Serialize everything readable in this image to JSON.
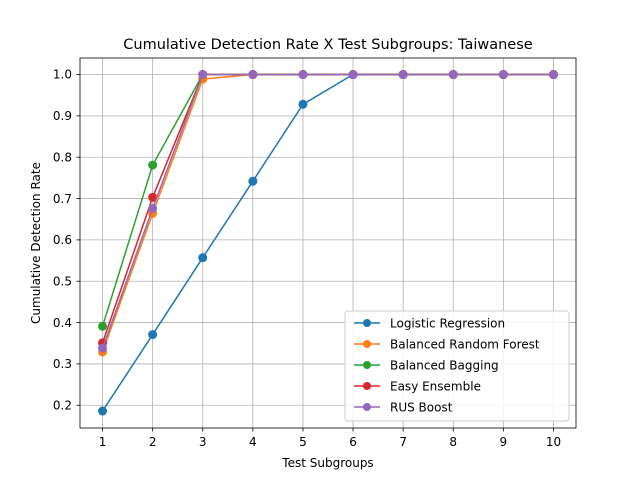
{
  "chart_data": {
    "type": "line",
    "title": "Cumulative Detection Rate X Test Subgroups: Taiwanese",
    "xlabel": "Test Subgroups",
    "ylabel": "Cumulative Detection Rate",
    "x": [
      1,
      2,
      3,
      4,
      5,
      6,
      7,
      8,
      9,
      10
    ],
    "xlim": [
      0.55,
      10.45
    ],
    "ylim": [
      0.145,
      1.04
    ],
    "xticks": [
      1,
      2,
      3,
      4,
      5,
      6,
      7,
      8,
      9,
      10
    ],
    "yticks": [
      0.2,
      0.3,
      0.4,
      0.5,
      0.6,
      0.7,
      0.8,
      0.9,
      1.0
    ],
    "ytick_labels": [
      "0.2",
      "0.3",
      "0.4",
      "0.5",
      "0.6",
      "0.7",
      "0.8",
      "0.9",
      "1.0"
    ],
    "grid": true,
    "legend_position": "lower-right",
    "marker": "circle",
    "series": [
      {
        "name": "Logistic Regression",
        "color": "#1f77b4",
        "values": [
          0.186,
          0.371,
          0.557,
          0.742,
          0.928,
          1.0,
          1.0,
          1.0,
          1.0,
          1.0
        ]
      },
      {
        "name": "Balanced Random Forest",
        "color": "#ff7f0e",
        "values": [
          0.329,
          0.664,
          0.989,
          1.0,
          1.0,
          1.0,
          1.0,
          1.0,
          1.0,
          1.0
        ]
      },
      {
        "name": "Balanced Bagging",
        "color": "#2ca02c",
        "values": [
          0.391,
          0.781,
          1.0,
          1.0,
          1.0,
          1.0,
          1.0,
          1.0,
          1.0,
          1.0
        ]
      },
      {
        "name": "Easy Ensemble",
        "color": "#d62728",
        "values": [
          0.351,
          0.703,
          1.0,
          1.0,
          1.0,
          1.0,
          1.0,
          1.0,
          1.0,
          1.0
        ]
      },
      {
        "name": "RUS Boost",
        "color": "#9467bd",
        "values": [
          0.338,
          0.676,
          1.0,
          1.0,
          1.0,
          1.0,
          1.0,
          1.0,
          1.0,
          1.0
        ]
      }
    ]
  }
}
